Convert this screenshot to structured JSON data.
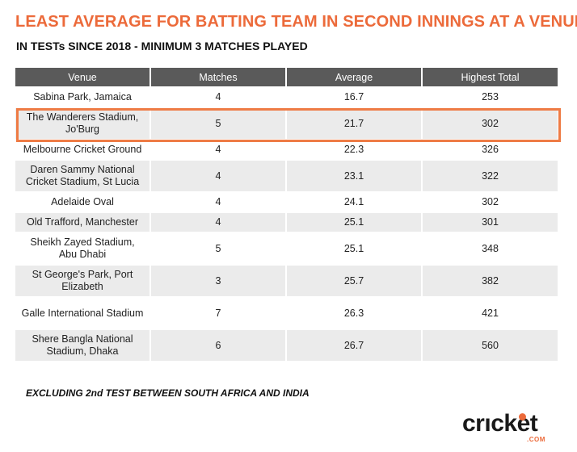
{
  "title": "LEAST AVERAGE FOR BATTING TEAM IN SECOND INNINGS AT A VENUE",
  "subtitle": "IN TESTs SINCE 2018 - MINIMUM 3 MATCHES PLAYED",
  "footnote": "EXCLUDING 2nd TEST BETWEEN SOUTH AFRICA AND INDIA",
  "logo": {
    "text": "crıcket",
    "sub": ".COM"
  },
  "colors": {
    "accent": "#ec6a3a",
    "header": "#5a5a5a",
    "stripe": "#ebebeb",
    "highlight": "#ee7b45"
  },
  "chart_data": {
    "type": "table",
    "columns": [
      "Venue",
      "Matches",
      "Average",
      "Highest Total"
    ],
    "rows": [
      {
        "venue": "Sabina Park, Jamaica",
        "matches": "4",
        "average": "16.7",
        "highest": "253"
      },
      {
        "venue": "The Wanderers Stadium, Jo'Burg",
        "matches": "5",
        "average": "21.7",
        "highest": "302",
        "highlighted": true
      },
      {
        "venue": "Melbourne Cricket Ground",
        "matches": "4",
        "average": "22.3",
        "highest": "326"
      },
      {
        "venue": "Daren Sammy National Cricket Stadium, St Lucia",
        "matches": "4",
        "average": "23.1",
        "highest": "322"
      },
      {
        "venue": "Adelaide Oval",
        "matches": "4",
        "average": "24.1",
        "highest": "302"
      },
      {
        "venue": "Old Trafford, Manchester",
        "matches": "4",
        "average": "25.1",
        "highest": "301"
      },
      {
        "venue": "Sheikh Zayed Stadium, Abu Dhabi",
        "matches": "5",
        "average": "25.1",
        "highest": "348"
      },
      {
        "venue": "St George's Park, Port Elizabeth",
        "matches": "3",
        "average": "25.7",
        "highest": "382"
      },
      {
        "venue": "Galle International Stadium",
        "matches": "7",
        "average": "26.3",
        "highest": "421"
      },
      {
        "venue": "Shere Bangla National Stadium, Dhaka",
        "matches": "6",
        "average": "26.7",
        "highest": "560"
      }
    ]
  }
}
